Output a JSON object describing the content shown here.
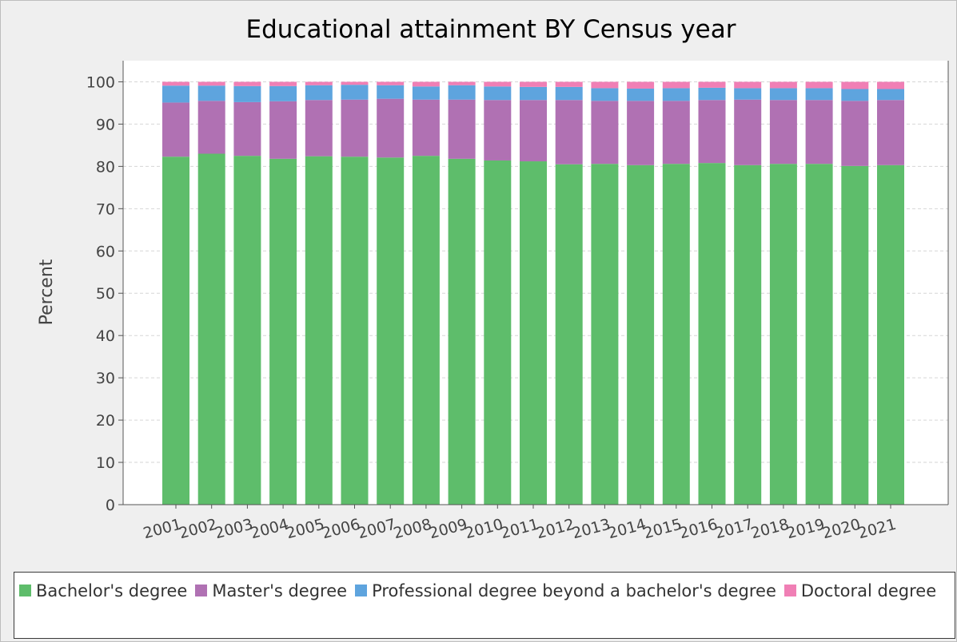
{
  "chart_data": {
    "type": "bar",
    "stacked": true,
    "title": "Educational attainment BY Census year",
    "xlabel": "",
    "ylabel": "Percent",
    "ylim": [
      0,
      105
    ],
    "yticks": [
      0,
      10,
      20,
      30,
      40,
      50,
      60,
      70,
      80,
      90,
      100
    ],
    "grid": true,
    "legend_position": "bottom",
    "categories": [
      "2001",
      "2002",
      "2003",
      "2004",
      "2005",
      "2006",
      "2007",
      "2008",
      "2009",
      "2010",
      "2011",
      "2012",
      "2013",
      "2014",
      "2015",
      "2016",
      "2017",
      "2018",
      "2019",
      "2020",
      "2021"
    ],
    "series": [
      {
        "name": "Bachelor's degree",
        "color": "#5ebd6b",
        "values": [
          82.3,
          83.0,
          82.5,
          81.8,
          82.4,
          82.3,
          82.1,
          82.5,
          81.8,
          81.4,
          81.2,
          80.5,
          80.6,
          80.3,
          80.6,
          80.8,
          80.3,
          80.6,
          80.6,
          80.1,
          80.3
        ]
      },
      {
        "name": "Master's degree",
        "color": "#b071b3",
        "values": [
          12.8,
          12.5,
          12.7,
          13.6,
          13.3,
          13.5,
          13.9,
          13.3,
          14.0,
          14.3,
          14.5,
          15.2,
          14.9,
          15.2,
          14.9,
          14.9,
          15.5,
          15.1,
          15.1,
          15.4,
          15.4
        ]
      },
      {
        "name": "Professional degree beyond a bachelor's degree",
        "color": "#5ea4de",
        "values": [
          4.0,
          3.6,
          3.8,
          3.6,
          3.5,
          3.5,
          3.2,
          3.1,
          3.4,
          3.2,
          3.1,
          3.1,
          3.0,
          2.9,
          3.0,
          2.9,
          2.7,
          2.8,
          2.8,
          2.8,
          2.6
        ]
      },
      {
        "name": "Doctoral degree",
        "color": "#f07fb5",
        "values": [
          0.9,
          0.9,
          1.0,
          1.0,
          0.8,
          0.7,
          0.8,
          1.1,
          0.8,
          1.1,
          1.2,
          1.2,
          1.5,
          1.6,
          1.5,
          1.4,
          1.5,
          1.5,
          1.5,
          1.7,
          1.7
        ]
      }
    ]
  }
}
